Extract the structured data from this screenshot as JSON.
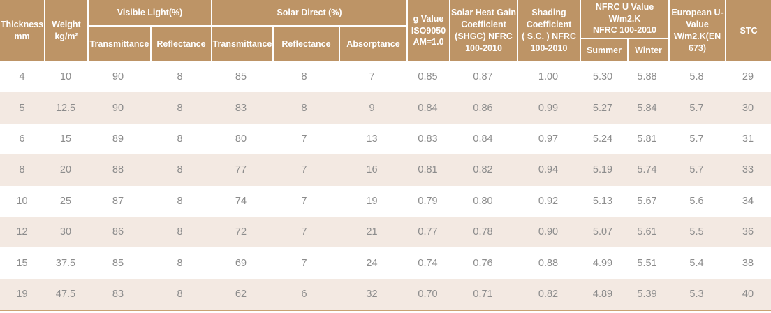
{
  "table": {
    "header": {
      "thickness": "Thickness\nmm",
      "weight": "Weight\nkg/m²",
      "visible_light": {
        "label": "Visible Light(%)",
        "columns": [
          "Transmittance",
          "Reflectance"
        ]
      },
      "solar_direct": {
        "label": "Solar  Direct (%)",
        "columns": [
          "Transmittance",
          "Reflectance",
          "Absorptance"
        ]
      },
      "g_value": "g Value\nISO9050\nAM=1.0",
      "shgc": "Solar Heat Gain\nCoefficient\n(SHGC) NFRC\n100-2010",
      "shading": "Shading\nCoefficient\n( S.C. ) NFRC\n100-2010",
      "nfrc_u": {
        "label": "NFRC U Value\nW/m2.K\nNFRC 100-2010",
        "columns": [
          "Summer",
          "Winter"
        ]
      },
      "european_u": "European U-\nValue\nW/m2.K(EN\n673)",
      "stc": "STC"
    },
    "rows": [
      [
        "4",
        "10",
        "90",
        "8",
        "85",
        "8",
        "7",
        "0.85",
        "0.87",
        "1.00",
        "5.30",
        "5.88",
        "5.8",
        "29"
      ],
      [
        "5",
        "12.5",
        "90",
        "8",
        "83",
        "8",
        "9",
        "0.84",
        "0.86",
        "0.99",
        "5.27",
        "5.84",
        "5.7",
        "30"
      ],
      [
        "6",
        "15",
        "89",
        "8",
        "80",
        "7",
        "13",
        "0.83",
        "0.84",
        "0.97",
        "5.24",
        "5.81",
        "5.7",
        "31"
      ],
      [
        "8",
        "20",
        "88",
        "8",
        "77",
        "7",
        "16",
        "0.81",
        "0.82",
        "0.94",
        "5.19",
        "5.74",
        "5.7",
        "33"
      ],
      [
        "10",
        "25",
        "87",
        "8",
        "74",
        "7",
        "19",
        "0.79",
        "0.80",
        "0.92",
        "5.13",
        "5.67",
        "5.6",
        "34"
      ],
      [
        "12",
        "30",
        "86",
        "8",
        "72",
        "7",
        "21",
        "0.77",
        "0.78",
        "0.90",
        "5.07",
        "5.61",
        "5.5",
        "36"
      ],
      [
        "15",
        "37.5",
        "85",
        "8",
        "69",
        "7",
        "24",
        "0.74",
        "0.76",
        "0.88",
        "4.99",
        "5.51",
        "5.4",
        "38"
      ],
      [
        "19",
        "47.5",
        "83",
        "8",
        "62",
        "6",
        "32",
        "0.70",
        "0.71",
        "0.82",
        "4.89",
        "5.39",
        "5.3",
        "40"
      ]
    ]
  },
  "colors": {
    "header_bg": "#bd9466",
    "header_text": "#ffffff",
    "row_alt_bg": "#f3e9e2",
    "row_text": "#8c8c8c",
    "bottom_border": "#c9a172"
  }
}
